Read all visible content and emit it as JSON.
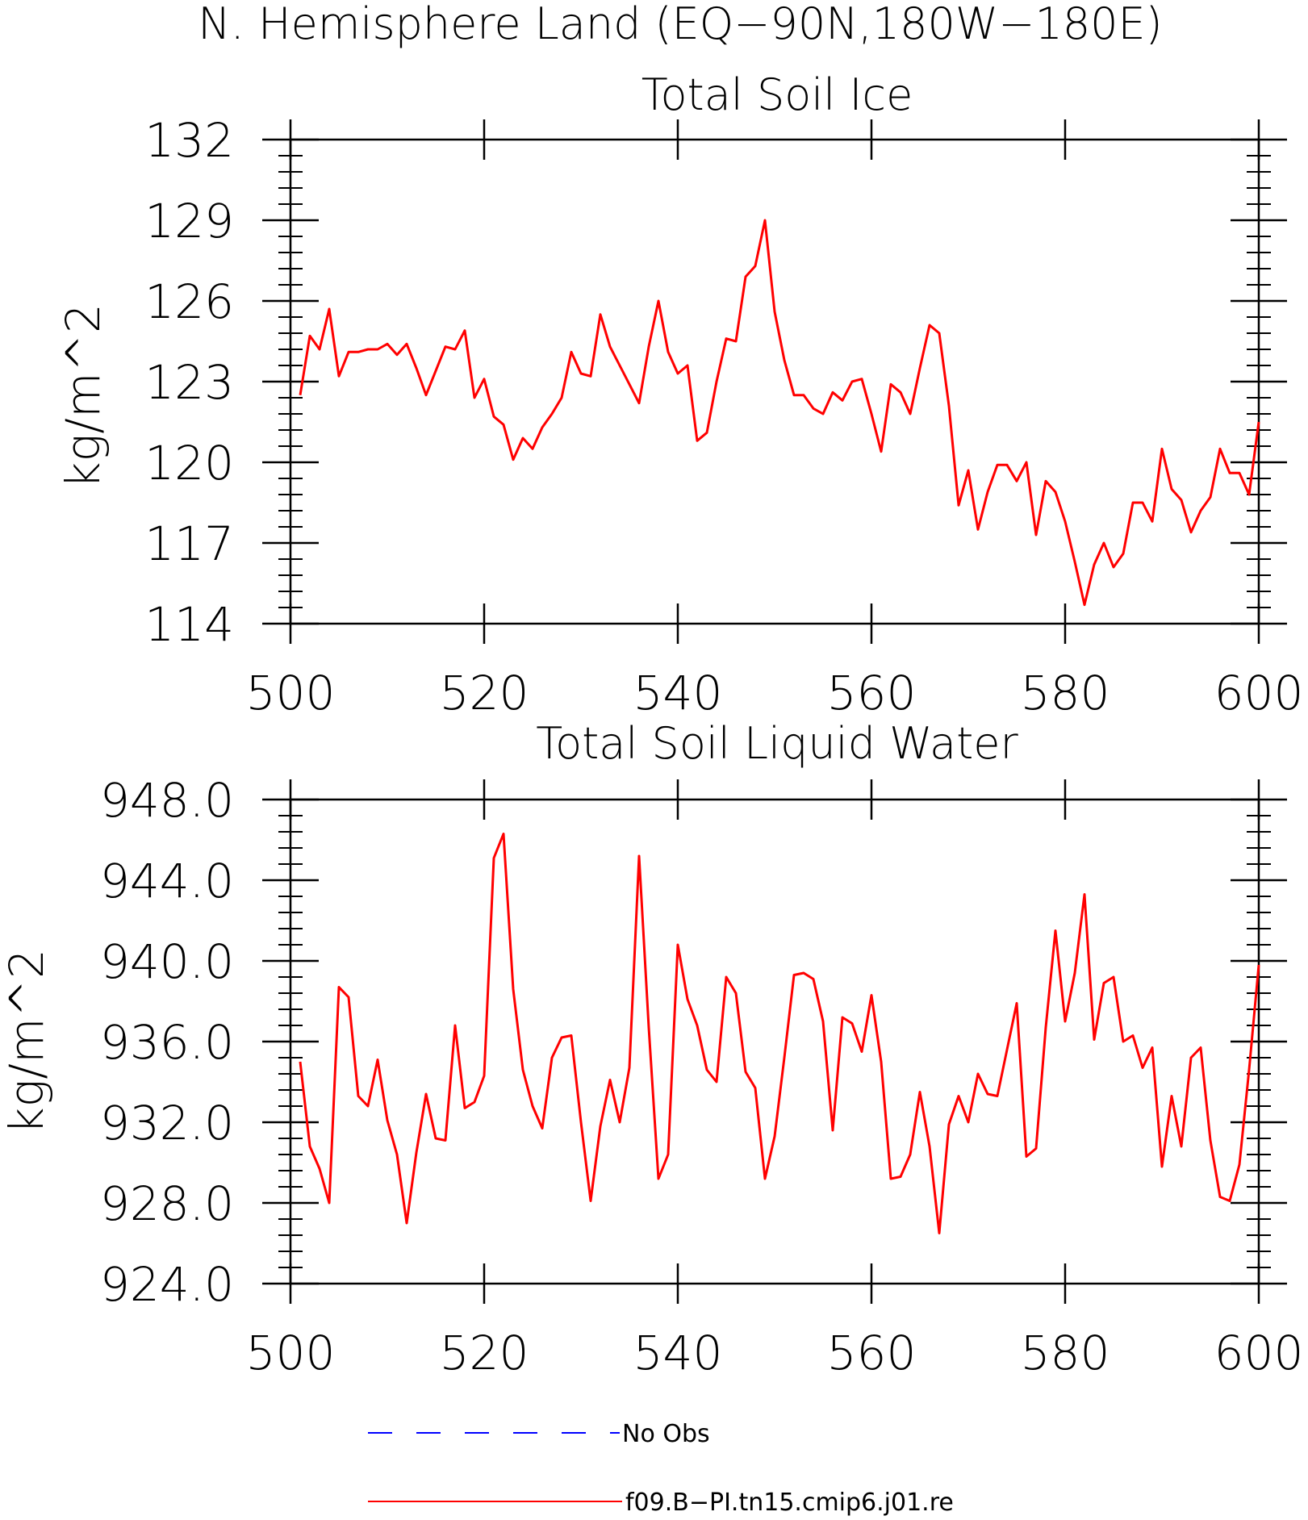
{
  "page_title": "N. Hemisphere Land (EQ−90N,180W−180E)",
  "chart_data": [
    {
      "type": "line",
      "title": "Total Soil Ice",
      "ylabel": "kg/m^2",
      "xlabel": "",
      "xlim": [
        500,
        600
      ],
      "ylim": [
        114,
        132
      ],
      "xticks": [
        500,
        520,
        540,
        560,
        580,
        600
      ],
      "xtick_labels": [
        "500",
        "520",
        "540",
        "560",
        "580",
        "600"
      ],
      "yticks": [
        114,
        117,
        120,
        123,
        126,
        129,
        132
      ],
      "ytick_labels": [
        "114",
        "117",
        "120",
        "123",
        "126",
        "129",
        "132"
      ],
      "grid": false,
      "series": [
        {
          "name": "f09.B−PI.tn15.cmip6.j01.re",
          "color": "#ff0000",
          "x": [
            501,
            502,
            503,
            504,
            505,
            506,
            507,
            508,
            509,
            510,
            511,
            512,
            513,
            514,
            515,
            516,
            517,
            518,
            519,
            520,
            521,
            522,
            523,
            524,
            525,
            526,
            527,
            528,
            529,
            530,
            531,
            532,
            533,
            534,
            535,
            536,
            537,
            538,
            539,
            540,
            541,
            542,
            543,
            544,
            545,
            546,
            547,
            548,
            549,
            550,
            551,
            552,
            553,
            554,
            555,
            556,
            557,
            558,
            559,
            560,
            561,
            562,
            563,
            564,
            565,
            566,
            567,
            568,
            569,
            570,
            571,
            572,
            573,
            574,
            575,
            576,
            577,
            578,
            579,
            580,
            581,
            582,
            583,
            584,
            585,
            586,
            587,
            588,
            589,
            590,
            591,
            592,
            593,
            594,
            595,
            596,
            597,
            598,
            599,
            600
          ],
          "values": [
            122.5,
            124.7,
            124.2,
            125.7,
            123.2,
            124.1,
            124.1,
            124.2,
            124.2,
            124.4,
            124.0,
            124.4,
            123.5,
            122.5,
            123.4,
            124.3,
            124.2,
            124.9,
            122.4,
            123.1,
            121.7,
            121.4,
            120.1,
            120.9,
            120.5,
            121.3,
            121.8,
            122.4,
            124.1,
            123.3,
            123.2,
            125.5,
            124.3,
            123.6,
            122.9,
            122.2,
            124.3,
            126.0,
            124.1,
            123.3,
            123.6,
            120.8,
            121.1,
            123.0,
            124.6,
            124.5,
            126.9,
            127.3,
            129.0,
            125.6,
            123.8,
            122.5,
            122.5,
            122.0,
            121.8,
            122.6,
            122.3,
            123.0,
            123.1,
            121.8,
            120.4,
            122.9,
            122.6,
            121.8,
            123.5,
            125.1,
            124.8,
            122.1,
            118.4,
            119.7,
            117.5,
            118.9,
            119.9,
            119.9,
            119.3,
            120.0,
            117.3,
            119.3,
            118.9,
            117.8,
            116.3,
            114.7,
            116.2,
            117.0,
            116.1,
            116.6,
            118.5,
            118.5,
            117.8,
            120.5,
            119.0,
            118.6,
            117.4,
            118.2,
            118.7,
            120.5,
            119.6,
            119.6,
            118.8,
            121.5
          ]
        }
      ]
    },
    {
      "type": "line",
      "title": "Total Soil Liquid Water",
      "ylabel": "kg/m^2",
      "xlabel": "",
      "xlim": [
        500,
        600
      ],
      "ylim": [
        924,
        948
      ],
      "xticks": [
        500,
        520,
        540,
        560,
        580,
        600
      ],
      "xtick_labels": [
        "500",
        "520",
        "540",
        "560",
        "580",
        "600"
      ],
      "yticks": [
        924,
        928,
        932,
        936,
        940,
        944,
        948
      ],
      "ytick_labels": [
        "924.0",
        "928.0",
        "932.0",
        "936.0",
        "940.0",
        "944.0",
        "948.0"
      ],
      "grid": false,
      "series": [
        {
          "name": "f09.B−PI.tn15.cmip6.j01.re",
          "color": "#ff0000",
          "x": [
            501,
            502,
            503,
            504,
            505,
            506,
            507,
            508,
            509,
            510,
            511,
            512,
            513,
            514,
            515,
            516,
            517,
            518,
            519,
            520,
            521,
            522,
            523,
            524,
            525,
            526,
            527,
            528,
            529,
            530,
            531,
            532,
            533,
            534,
            535,
            536,
            537,
            538,
            539,
            540,
            541,
            542,
            543,
            544,
            545,
            546,
            547,
            548,
            549,
            550,
            551,
            552,
            553,
            554,
            555,
            556,
            557,
            558,
            559,
            560,
            561,
            562,
            563,
            564,
            565,
            566,
            567,
            568,
            569,
            570,
            571,
            572,
            573,
            574,
            575,
            576,
            577,
            578,
            579,
            580,
            581,
            582,
            583,
            584,
            585,
            586,
            587,
            588,
            589,
            590,
            591,
            592,
            593,
            594,
            595,
            596,
            597,
            598,
            599,
            600
          ],
          "values": [
            935.0,
            930.8,
            929.7,
            928.0,
            938.7,
            938.2,
            933.3,
            932.8,
            935.1,
            932.1,
            930.4,
            927.0,
            930.5,
            933.4,
            931.2,
            931.1,
            936.8,
            932.7,
            933.0,
            934.3,
            945.1,
            946.3,
            938.6,
            934.6,
            932.8,
            931.7,
            935.2,
            936.2,
            936.3,
            932.0,
            928.1,
            931.8,
            934.1,
            932.0,
            934.7,
            945.2,
            936.7,
            929.2,
            930.4,
            940.8,
            938.1,
            936.8,
            934.6,
            934.0,
            939.2,
            938.4,
            934.5,
            933.7,
            929.2,
            931.3,
            935.2,
            939.3,
            939.4,
            939.1,
            937.0,
            931.6,
            937.2,
            936.9,
            935.5,
            938.3,
            935.0,
            929.2,
            929.3,
            930.4,
            933.5,
            930.8,
            926.5,
            931.9,
            933.3,
            932.0,
            934.4,
            933.4,
            933.3,
            935.6,
            937.9,
            930.3,
            930.7,
            936.7,
            941.5,
            937.0,
            939.4,
            943.3,
            936.1,
            938.9,
            939.2,
            936.0,
            936.3,
            934.7,
            935.7,
            929.8,
            933.3,
            930.8,
            935.2,
            935.7,
            931.1,
            928.3,
            928.1,
            929.9,
            934.6,
            939.8
          ]
        }
      ]
    }
  ],
  "legend": {
    "items": [
      {
        "label": "No Obs",
        "color": "#0000ff",
        "style": "dashed"
      },
      {
        "label": "f09.B−PI.tn15.cmip6.j01.re",
        "color": "#ff0000",
        "style": "solid"
      }
    ]
  }
}
